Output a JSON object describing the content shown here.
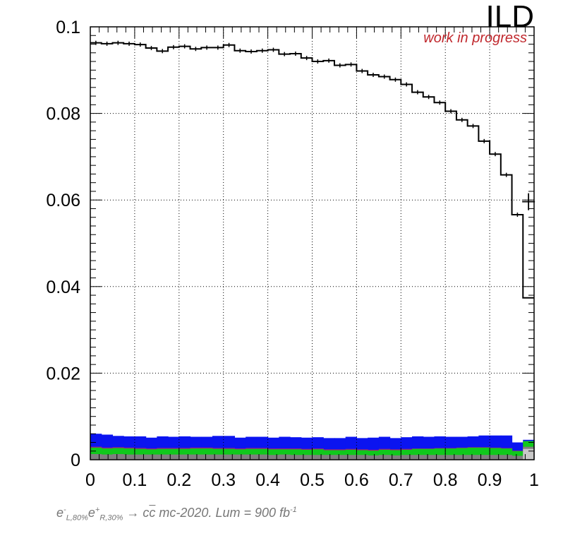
{
  "experiment_label": "ILD",
  "status_label": "work in progress",
  "colors": {
    "status": "#c0282d",
    "signal_line": "#000000",
    "blue_fill": "#0b14f0",
    "purple_fill": "#a0207a",
    "green_fill": "#10c81c",
    "gray_fill": "#7f7f7f",
    "lightgray_fill": "#c8c8c8",
    "grid": "#000000"
  },
  "caption": {
    "em": "e",
    "em_sup": "-",
    "em_sub": "L,80%",
    "ep": "e",
    "ep_sup": "+",
    "ep_sub": "R,30%",
    "arrow": "→",
    "c1": "c",
    "c2": "c",
    "rest": " mc-2020. Lum = 900 fb",
    "lum_exp": "-1"
  },
  "chart_data": {
    "type": "histogram",
    "xlim": [
      0,
      1
    ],
    "ylim": [
      0,
      0.1
    ],
    "grid": true,
    "n_bins": 40,
    "x_ticks": [
      "0",
      "0.1",
      "0.2",
      "0.3",
      "0.4",
      "0.5",
      "0.6",
      "0.7",
      "0.8",
      "0.9",
      "1"
    ],
    "y_ticks": [
      "0",
      "0.02",
      "0.04",
      "0.06",
      "0.08",
      "0.1"
    ],
    "x_tick_values": [
      0,
      0.1,
      0.2,
      0.3,
      0.4,
      0.5,
      0.6,
      0.7,
      0.8,
      0.9,
      1.0
    ],
    "y_tick_values": [
      0,
      0.02,
      0.04,
      0.06,
      0.08,
      0.1
    ],
    "signal": {
      "values": [
        0.0963,
        0.0961,
        0.0963,
        0.0961,
        0.0959,
        0.0951,
        0.0944,
        0.0953,
        0.0955,
        0.0949,
        0.0952,
        0.0952,
        0.0958,
        0.0945,
        0.0943,
        0.0945,
        0.0947,
        0.0937,
        0.0938,
        0.0928,
        0.092,
        0.0922,
        0.0911,
        0.0913,
        0.0898,
        0.0889,
        0.0885,
        0.0878,
        0.0867,
        0.0849,
        0.0838,
        0.0825,
        0.0805,
        0.0785,
        0.0771,
        0.0736,
        0.0706,
        0.0658,
        0.0566,
        0.0374
      ],
      "last_point": 0.0596
    },
    "stack": {
      "blue_top": [
        0.006,
        0.0058,
        0.0055,
        0.0054,
        0.0054,
        0.0051,
        0.0054,
        0.0053,
        0.0054,
        0.0053,
        0.0053,
        0.0055,
        0.0055,
        0.0051,
        0.0053,
        0.0053,
        0.0051,
        0.0053,
        0.0052,
        0.0051,
        0.0052,
        0.005,
        0.005,
        0.0053,
        0.005,
        0.0051,
        0.0053,
        0.005,
        0.0052,
        0.0054,
        0.0053,
        0.0054,
        0.0053,
        0.0053,
        0.0054,
        0.0056,
        0.0056,
        0.0056,
        0.004,
        0.0046
      ],
      "purple_top": [
        0.003,
        0.0028,
        0.0029,
        0.0028,
        0.0027,
        0.0026,
        0.0027,
        0.0027,
        0.0027,
        0.0028,
        0.0028,
        0.0027,
        0.0027,
        0.0026,
        0.0027,
        0.0027,
        0.0026,
        0.0026,
        0.0026,
        0.0025,
        0.0026,
        0.0024,
        0.0024,
        0.0025,
        0.0024,
        0.0023,
        0.0025,
        0.0024,
        0.0025,
        0.0026,
        0.0026,
        0.0027,
        0.0027,
        0.0028,
        0.0029,
        0.0029,
        0.0028,
        0.0027,
        0.0021,
        0.0031
      ],
      "green_top": [
        0.0028,
        0.0026,
        0.0027,
        0.0026,
        0.0025,
        0.0024,
        0.0025,
        0.0025,
        0.0025,
        0.0026,
        0.0026,
        0.0025,
        0.0025,
        0.0024,
        0.0025,
        0.0025,
        0.0024,
        0.0024,
        0.0024,
        0.0023,
        0.0024,
        0.0022,
        0.0022,
        0.0023,
        0.0022,
        0.0021,
        0.0023,
        0.0022,
        0.0023,
        0.0025,
        0.0025,
        0.0026,
        0.0026,
        0.0027,
        0.0028,
        0.0028,
        0.0027,
        0.0026,
        0.002,
        0.0043
      ],
      "gray_top": [
        0.0013,
        0.0012,
        0.0013,
        0.0012,
        0.0012,
        0.0012,
        0.0012,
        0.0012,
        0.0012,
        0.0012,
        0.0012,
        0.0012,
        0.0012,
        0.0012,
        0.0012,
        0.0012,
        0.0011,
        0.0012,
        0.0011,
        0.0011,
        0.0011,
        0.0011,
        0.0011,
        0.0011,
        0.0011,
        0.001,
        0.0011,
        0.001,
        0.0011,
        0.0011,
        0.0011,
        0.0011,
        0.0011,
        0.0011,
        0.0011,
        0.0011,
        0.0011,
        0.0011,
        0.0009,
        0.003
      ],
      "lightgray_top": [
        0,
        0,
        0,
        0,
        0,
        0,
        0,
        0,
        0,
        0,
        0,
        0,
        0,
        0,
        0,
        0,
        0,
        0,
        0,
        0,
        0,
        0,
        0,
        0,
        0,
        0,
        0,
        0,
        0,
        0,
        0,
        0,
        0,
        0,
        0,
        0,
        0,
        0,
        0,
        0.0025
      ]
    }
  }
}
